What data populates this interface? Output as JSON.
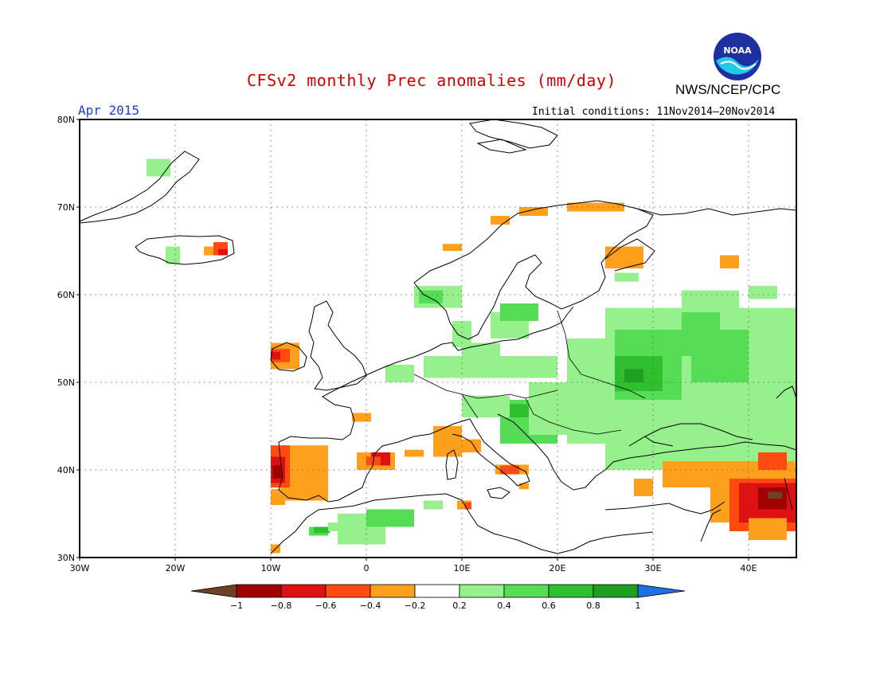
{
  "header": {
    "title": "CFSv2 monthly Prec anomalies (mm/day)",
    "agency": "NWS/NCEP/CPC",
    "month": "Apr 2015",
    "initial_conditions": "Initial conditions: 11Nov2014–20Nov2014",
    "logo_text": "NOAA"
  },
  "map": {
    "lat_ticks": [
      "80N",
      "70N",
      "60N",
      "50N",
      "40N",
      "30N"
    ],
    "lon_ticks": [
      "30W",
      "20W",
      "10W",
      "0",
      "10E",
      "20E",
      "30E",
      "40E"
    ],
    "extent": {
      "lon": [
        -30,
        45
      ],
      "lat": [
        30,
        80
      ]
    },
    "gridlines": "dotted"
  },
  "legend": {
    "labels": [
      "-1",
      "-0.8",
      "-0.6",
      "-0.4",
      "-0.2",
      "0.2",
      "0.4",
      "0.6",
      "0.8",
      "1"
    ],
    "colors": {
      "lt_-1": "#6b4226",
      "-1_-0.8": "#a00000",
      "-0.8_-0.6": "#dd1111",
      "-0.6_-0.4": "#ff4a11",
      "-0.4_-0.2": "#ffa01c",
      "-0.2_0.2": "#ffffff",
      "0.2_0.4": "#96f08c",
      "0.4_0.6": "#55dd55",
      "0.6_0.8": "#2fbf2f",
      "0.8_1": "#1f9f1f",
      "gt_1": "#1e6fe0"
    }
  }
}
